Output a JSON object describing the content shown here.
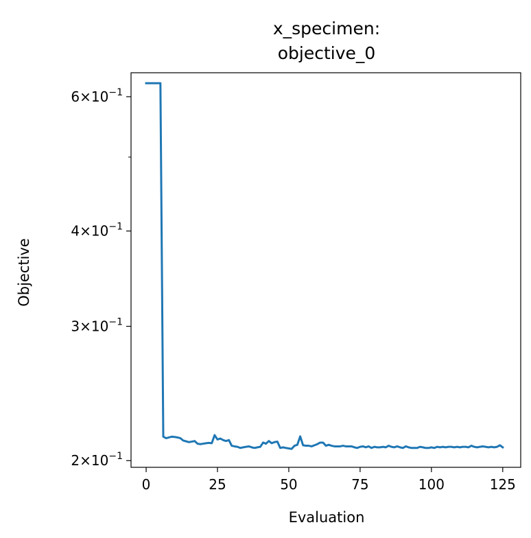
{
  "chart_data": {
    "type": "line",
    "title": [
      "x_specimen:",
      "objective_0"
    ],
    "xlabel": "Evaluation",
    "ylabel": "Objective",
    "yscale": "log",
    "xlim": [
      -5.3,
      131.3
    ],
    "ylim": [
      0.196,
      0.645
    ],
    "xticks": [
      0,
      25,
      50,
      75,
      100,
      125
    ],
    "xtick_labels": [
      "0",
      "25",
      "50",
      "75",
      "100",
      "125"
    ],
    "yticks": [
      {
        "value": 0.6,
        "mantissa": "6",
        "exponent": "−1"
      },
      {
        "value": 0.4,
        "mantissa": "4",
        "exponent": "−1"
      },
      {
        "value": 0.3,
        "mantissa": "3",
        "exponent": "−1"
      },
      {
        "value": 0.2,
        "mantissa": "2",
        "exponent": "−1"
      }
    ],
    "yminor_ticks": [
      0.5
    ],
    "grid": false,
    "line_color": "#1f77b4",
    "series": [
      {
        "x": [
          0,
          1,
          2,
          3,
          4,
          5,
          6,
          7,
          8,
          9,
          10,
          11,
          12,
          13,
          14,
          15,
          16,
          17,
          18,
          19,
          20,
          21,
          22,
          23,
          24,
          25,
          26,
          27,
          28,
          29,
          30,
          31,
          32,
          33,
          34,
          35,
          36,
          37,
          38,
          39,
          40,
          41,
          42,
          43,
          44,
          45,
          46,
          47,
          48,
          49,
          50,
          51,
          52,
          53,
          54,
          55,
          56,
          57,
          58,
          59,
          60,
          61,
          62,
          63,
          64,
          65,
          66,
          67,
          68,
          69,
          70,
          71,
          72,
          73,
          74,
          75,
          76,
          77,
          78,
          79,
          80,
          81,
          82,
          83,
          84,
          85,
          86,
          87,
          88,
          89,
          90,
          91,
          92,
          93,
          94,
          95,
          96,
          97,
          98,
          99,
          100,
          101,
          102,
          103,
          104,
          105,
          106,
          107,
          108,
          109,
          110,
          111,
          112,
          113,
          114,
          115,
          116,
          117,
          118,
          119,
          120,
          121,
          122,
          123,
          124,
          125
        ],
        "y": [
          0.625,
          0.625,
          0.625,
          0.625,
          0.625,
          0.625,
          0.215,
          0.214,
          0.2145,
          0.215,
          0.2148,
          0.2145,
          0.214,
          0.2125,
          0.212,
          0.2115,
          0.2118,
          0.2122,
          0.2105,
          0.2102,
          0.2105,
          0.2108,
          0.211,
          0.2108,
          0.216,
          0.2132,
          0.2138,
          0.2128,
          0.2122,
          0.2128,
          0.2092,
          0.2088,
          0.2085,
          0.2078,
          0.2082,
          0.2085,
          0.2088,
          0.2082,
          0.2078,
          0.2082,
          0.2085,
          0.2112,
          0.2105,
          0.2122,
          0.2108,
          0.2115,
          0.2118,
          0.2078,
          0.2082,
          0.2078,
          0.2075,
          0.2072,
          0.2092,
          0.2098,
          0.2152,
          0.2095,
          0.2092,
          0.2092,
          0.2088,
          0.2095,
          0.2102,
          0.2112,
          0.2112,
          0.2092,
          0.2098,
          0.2092,
          0.2088,
          0.2088,
          0.2088,
          0.2092,
          0.2088,
          0.2088,
          0.2088,
          0.2082,
          0.2078,
          0.2085,
          0.2088,
          0.2082,
          0.2088,
          0.2078,
          0.2085,
          0.2082,
          0.2082,
          0.2085,
          0.2082,
          0.2092,
          0.2085,
          0.2082,
          0.2088,
          0.2082,
          0.2078,
          0.2088,
          0.2082,
          0.2078,
          0.2078,
          0.2078,
          0.2085,
          0.2082,
          0.2078,
          0.2078,
          0.2082,
          0.2078,
          0.2085,
          0.2082,
          0.2085,
          0.2082,
          0.2085,
          0.2085,
          0.2082,
          0.2085,
          0.2082,
          0.2085,
          0.2085,
          0.2082,
          0.2092,
          0.2085,
          0.2082,
          0.2085,
          0.2088,
          0.2085,
          0.2082,
          0.2085,
          0.2082,
          0.2085,
          0.2095,
          0.2082
        ]
      }
    ]
  }
}
